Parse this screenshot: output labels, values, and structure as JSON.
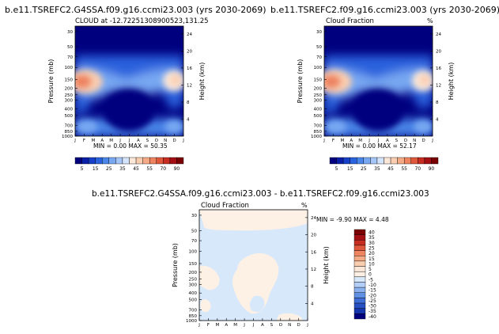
{
  "chart_data": [
    {
      "type": "heatmap",
      "title": "b.e11.TSREFC2.G4SSA.f09.g16.ccmi23.003 (yrs 2030-2069)",
      "subtitle": "CLOUD at -12.72251308900523,131.25",
      "subtitle_right": "",
      "xlabel": "",
      "ylabel": "Pressure (mb)",
      "ylabel_right": "Height (km)",
      "x_ticks": [
        "J",
        "F",
        "M",
        "A",
        "M",
        "J",
        "J",
        "A",
        "S",
        "O",
        "N",
        "D",
        "J"
      ],
      "y_ticks": [
        "30",
        "50",
        "70",
        "100",
        "150",
        "200",
        "250",
        "300",
        "400",
        "500",
        "700",
        "850",
        "1000"
      ],
      "y_ticks_right": [
        "24",
        "20",
        "16",
        "12",
        "8",
        "4"
      ],
      "stats": "MIN =    0.00 MAX =   50.35",
      "min": 0.0,
      "max": 50.35,
      "colorbar_labels": [
        "5",
        "15",
        "25",
        "35",
        "45",
        "55",
        "70",
        "90"
      ],
      "colorbar_levels": [
        0,
        5,
        10,
        15,
        20,
        25,
        30,
        35,
        40,
        45,
        50,
        55,
        60,
        70,
        80,
        90
      ]
    },
    {
      "type": "heatmap",
      "title": "b.e11.TSREFC2.f09.g16.ccmi23.003 (yrs 2030-2069)",
      "subtitle": "Cloud Fraction",
      "subtitle_right": "%",
      "xlabel": "",
      "ylabel": "Pressure (mb)",
      "ylabel_right": "Height (km)",
      "x_ticks": [
        "J",
        "F",
        "M",
        "A",
        "M",
        "J",
        "J",
        "A",
        "S",
        "O",
        "N",
        "D",
        "J"
      ],
      "y_ticks": [
        "30",
        "50",
        "70",
        "100",
        "150",
        "200",
        "250",
        "300",
        "400",
        "500",
        "700",
        "850",
        "1000"
      ],
      "y_ticks_right": [
        "24",
        "20",
        "16",
        "12",
        "8",
        "4"
      ],
      "stats": "MIN =    0.00 MAX =   52.17",
      "min": 0.0,
      "max": 52.17,
      "colorbar_labels": [
        "5",
        "15",
        "25",
        "35",
        "45",
        "55",
        "70",
        "90"
      ],
      "colorbar_levels": [
        0,
        5,
        10,
        15,
        20,
        25,
        30,
        35,
        40,
        45,
        50,
        55,
        60,
        70,
        80,
        90
      ]
    },
    {
      "type": "heatmap",
      "title": "b.e11.TSREFC2.G4SSA.f09.g16.ccmi23.003 - b.e11.TSREFC2.f09.g16.ccmi23.003",
      "subtitle": "Cloud Fraction",
      "subtitle_right": "%",
      "xlabel": "",
      "ylabel": "Pressure (mb)",
      "ylabel_right": "Height (km)",
      "x_ticks": [
        "J",
        "F",
        "M",
        "A",
        "M",
        "J",
        "J",
        "A",
        "S",
        "O",
        "N",
        "D",
        "J"
      ],
      "y_ticks": [
        "30",
        "50",
        "70",
        "100",
        "150",
        "200",
        "250",
        "300",
        "400",
        "500",
        "700",
        "850",
        "1000"
      ],
      "y_ticks_right": [
        "24",
        "20",
        "16",
        "12",
        "8",
        "4"
      ],
      "stats": "MIN =   -9.90 MAX =    4.48",
      "min": -9.9,
      "max": 4.48,
      "colorbar_labels": [
        "40",
        "35",
        "30",
        "25",
        "20",
        "15",
        "10",
        "5",
        "0",
        "-5",
        "-10",
        "-15",
        "-20",
        "-25",
        "-30",
        "-35",
        "-40"
      ]
    }
  ],
  "colors": {
    "seq": [
      "#00007f",
      "#0a1fa8",
      "#1740c8",
      "#2a62dd",
      "#4a86ea",
      "#78a8f2",
      "#a6c6f8",
      "#d4e4fb",
      "#fbe7d8",
      "#f9cdb0",
      "#f5aa86",
      "#ee8460",
      "#e0583c",
      "#c82d21",
      "#a30f12",
      "#7a0003"
    ],
    "diff": [
      "#7a0003",
      "#a30f12",
      "#c82d21",
      "#e0583c",
      "#ee8460",
      "#f5aa86",
      "#f9cdb0",
      "#fbe7d8",
      "#fdf1e6",
      "#d8e8fb",
      "#b3cef7",
      "#8bb2ef",
      "#6290e4",
      "#3f6ed6",
      "#2750c2",
      "#1535ad",
      "#00007f"
    ]
  }
}
